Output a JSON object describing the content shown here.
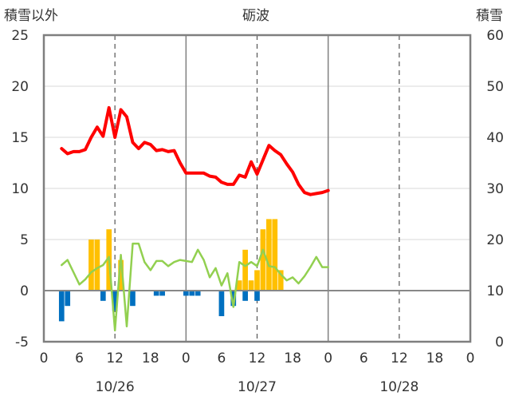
{
  "chart_data": {
    "type": "bar+line",
    "title": "砺波",
    "left_axis_label": "積雪以外",
    "right_axis_label": "積雪",
    "left_ylim": [
      -5,
      25
    ],
    "left_yticks": [
      "-5",
      "0",
      "5",
      "10",
      "15",
      "20",
      "25"
    ],
    "right_ylim": [
      0,
      60
    ],
    "right_yticks": [
      "0",
      "10",
      "20",
      "30",
      "40",
      "50",
      "60"
    ],
    "x_range_hours": [
      0,
      72
    ],
    "x_tick_labels": [
      "0",
      "6",
      "12",
      "18",
      "0",
      "6",
      "12",
      "18",
      "0",
      "6",
      "12",
      "18",
      "0"
    ],
    "date_labels": [
      "10/26",
      "10/27",
      "10/28"
    ],
    "grid": true,
    "colors": {
      "temperature": "#ff0000",
      "humidity_like": "#92d050",
      "positive_bar": "#ffc000",
      "negative_bar": "#0070c0",
      "grid_solid": "#808080",
      "grid_dashed": "#555555",
      "zero_line": "#888888"
    },
    "series": [
      {
        "type": "line",
        "axis": "left",
        "color": "#ff0000",
        "x": [
          3,
          4,
          5,
          6,
          7,
          8,
          9,
          10,
          11,
          12,
          13,
          14,
          15,
          16,
          17,
          18,
          19,
          20,
          21,
          22,
          23,
          24,
          25,
          26,
          27,
          28,
          29,
          30,
          31,
          32,
          33,
          34,
          35,
          36,
          37,
          38,
          39,
          40,
          41,
          42,
          43,
          44,
          45,
          46,
          47,
          48
        ],
        "values": [
          13.9,
          13.4,
          13.6,
          13.6,
          13.8,
          15.0,
          16.0,
          15.1,
          17.9,
          15.0,
          17.7,
          17.0,
          14.5,
          13.9,
          14.5,
          14.3,
          13.7,
          13.8,
          13.6,
          13.7,
          12.5,
          11.5,
          11.5,
          11.5,
          11.5,
          11.2,
          11.1,
          10.6,
          10.4,
          10.4,
          11.3,
          11.1,
          12.6,
          11.4,
          12.8,
          14.2,
          13.7,
          13.3,
          12.4,
          11.6,
          10.4,
          9.6,
          9.4,
          9.5,
          9.6,
          9.8
        ]
      },
      {
        "type": "line",
        "axis": "left",
        "color": "#92d050",
        "x": [
          3,
          4,
          5,
          6,
          7,
          8,
          9,
          10,
          11,
          12,
          13,
          14,
          15,
          16,
          17,
          18,
          19,
          20,
          21,
          22,
          23,
          24,
          25,
          26,
          27,
          28,
          29,
          30,
          31,
          32,
          33,
          34,
          35,
          36,
          37,
          38,
          39,
          40,
          41,
          42,
          43,
          44,
          45,
          46,
          47,
          48
        ],
        "values": [
          2.5,
          3.0,
          1.8,
          0.6,
          1.1,
          1.8,
          2.2,
          2.5,
          3.3,
          -3.9,
          3.5,
          -3.5,
          4.6,
          4.6,
          2.8,
          2.0,
          2.9,
          2.9,
          2.4,
          2.8,
          3.0,
          2.9,
          2.8,
          4.0,
          3.0,
          1.3,
          2.2,
          0.5,
          1.7,
          -1.6,
          2.8,
          2.4,
          2.8,
          2.4,
          4.0,
          2.4,
          2.3,
          1.6,
          1.0,
          1.3,
          0.7,
          1.4,
          2.3,
          3.3,
          2.3,
          2.3
        ]
      },
      {
        "type": "bar",
        "axis": "left",
        "color": "#ffc000",
        "x": [
          8,
          9,
          11,
          13,
          33,
          34,
          35,
          36,
          37,
          38,
          39,
          40
        ],
        "values": [
          5,
          5,
          6,
          3,
          1,
          4,
          1,
          2,
          6,
          7,
          7,
          2
        ]
      },
      {
        "type": "bar",
        "axis": "left",
        "color": "#0070c0",
        "x": [
          3,
          4,
          10,
          12,
          15,
          19,
          20,
          24,
          25,
          26,
          30,
          32,
          34,
          36
        ],
        "values": [
          -3,
          -1.5,
          -1,
          -2,
          -1.5,
          -0.5,
          -0.5,
          -0.5,
          -0.5,
          -0.5,
          -2.5,
          -1.5,
          -1,
          -1
        ]
      }
    ]
  }
}
